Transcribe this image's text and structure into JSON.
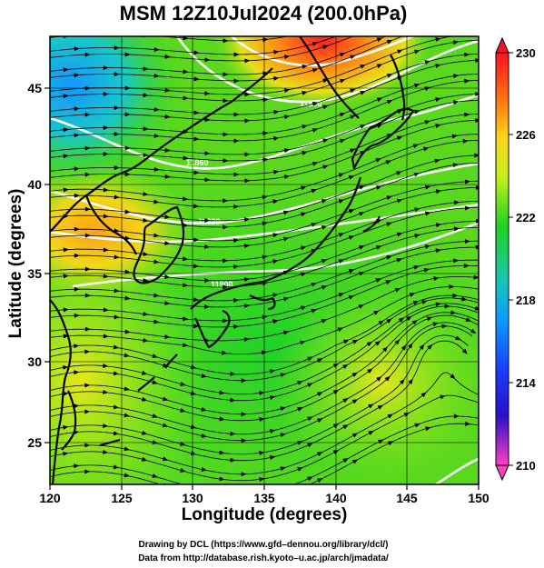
{
  "title": "MSM 12Z10Jul2024 (200.0hPa)",
  "x_axis": {
    "label": "Longitude (degrees)",
    "ticks": [
      "120",
      "125",
      "130",
      "135",
      "140",
      "145",
      "150"
    ]
  },
  "y_axis": {
    "label": "Latitude  (degrees)",
    "ticks": [
      "25",
      "30",
      "35",
      "40",
      "45"
    ]
  },
  "colorbar": {
    "min": 210,
    "max": 230,
    "ticks": [
      "230",
      "226",
      "222",
      "218",
      "214",
      "210"
    ],
    "colors": [
      "#ff1020",
      "#ff7a10",
      "#ffd21a",
      "#c8f01a",
      "#1ed21e",
      "#16c8b4",
      "#0a9aff",
      "#1a3cff",
      "#2a10c8",
      "#c810c8",
      "#ff40c0"
    ]
  },
  "contour_labels": [
    "11820",
    "11860",
    "11880",
    "11900"
  ],
  "credits": [
    "Drawing by DCL (https://www.gfd–dennou.org/library/dcl/)",
    "Data from http://database.rish.kyoto–u.ac.jp/arch/jmadata/"
  ]
}
